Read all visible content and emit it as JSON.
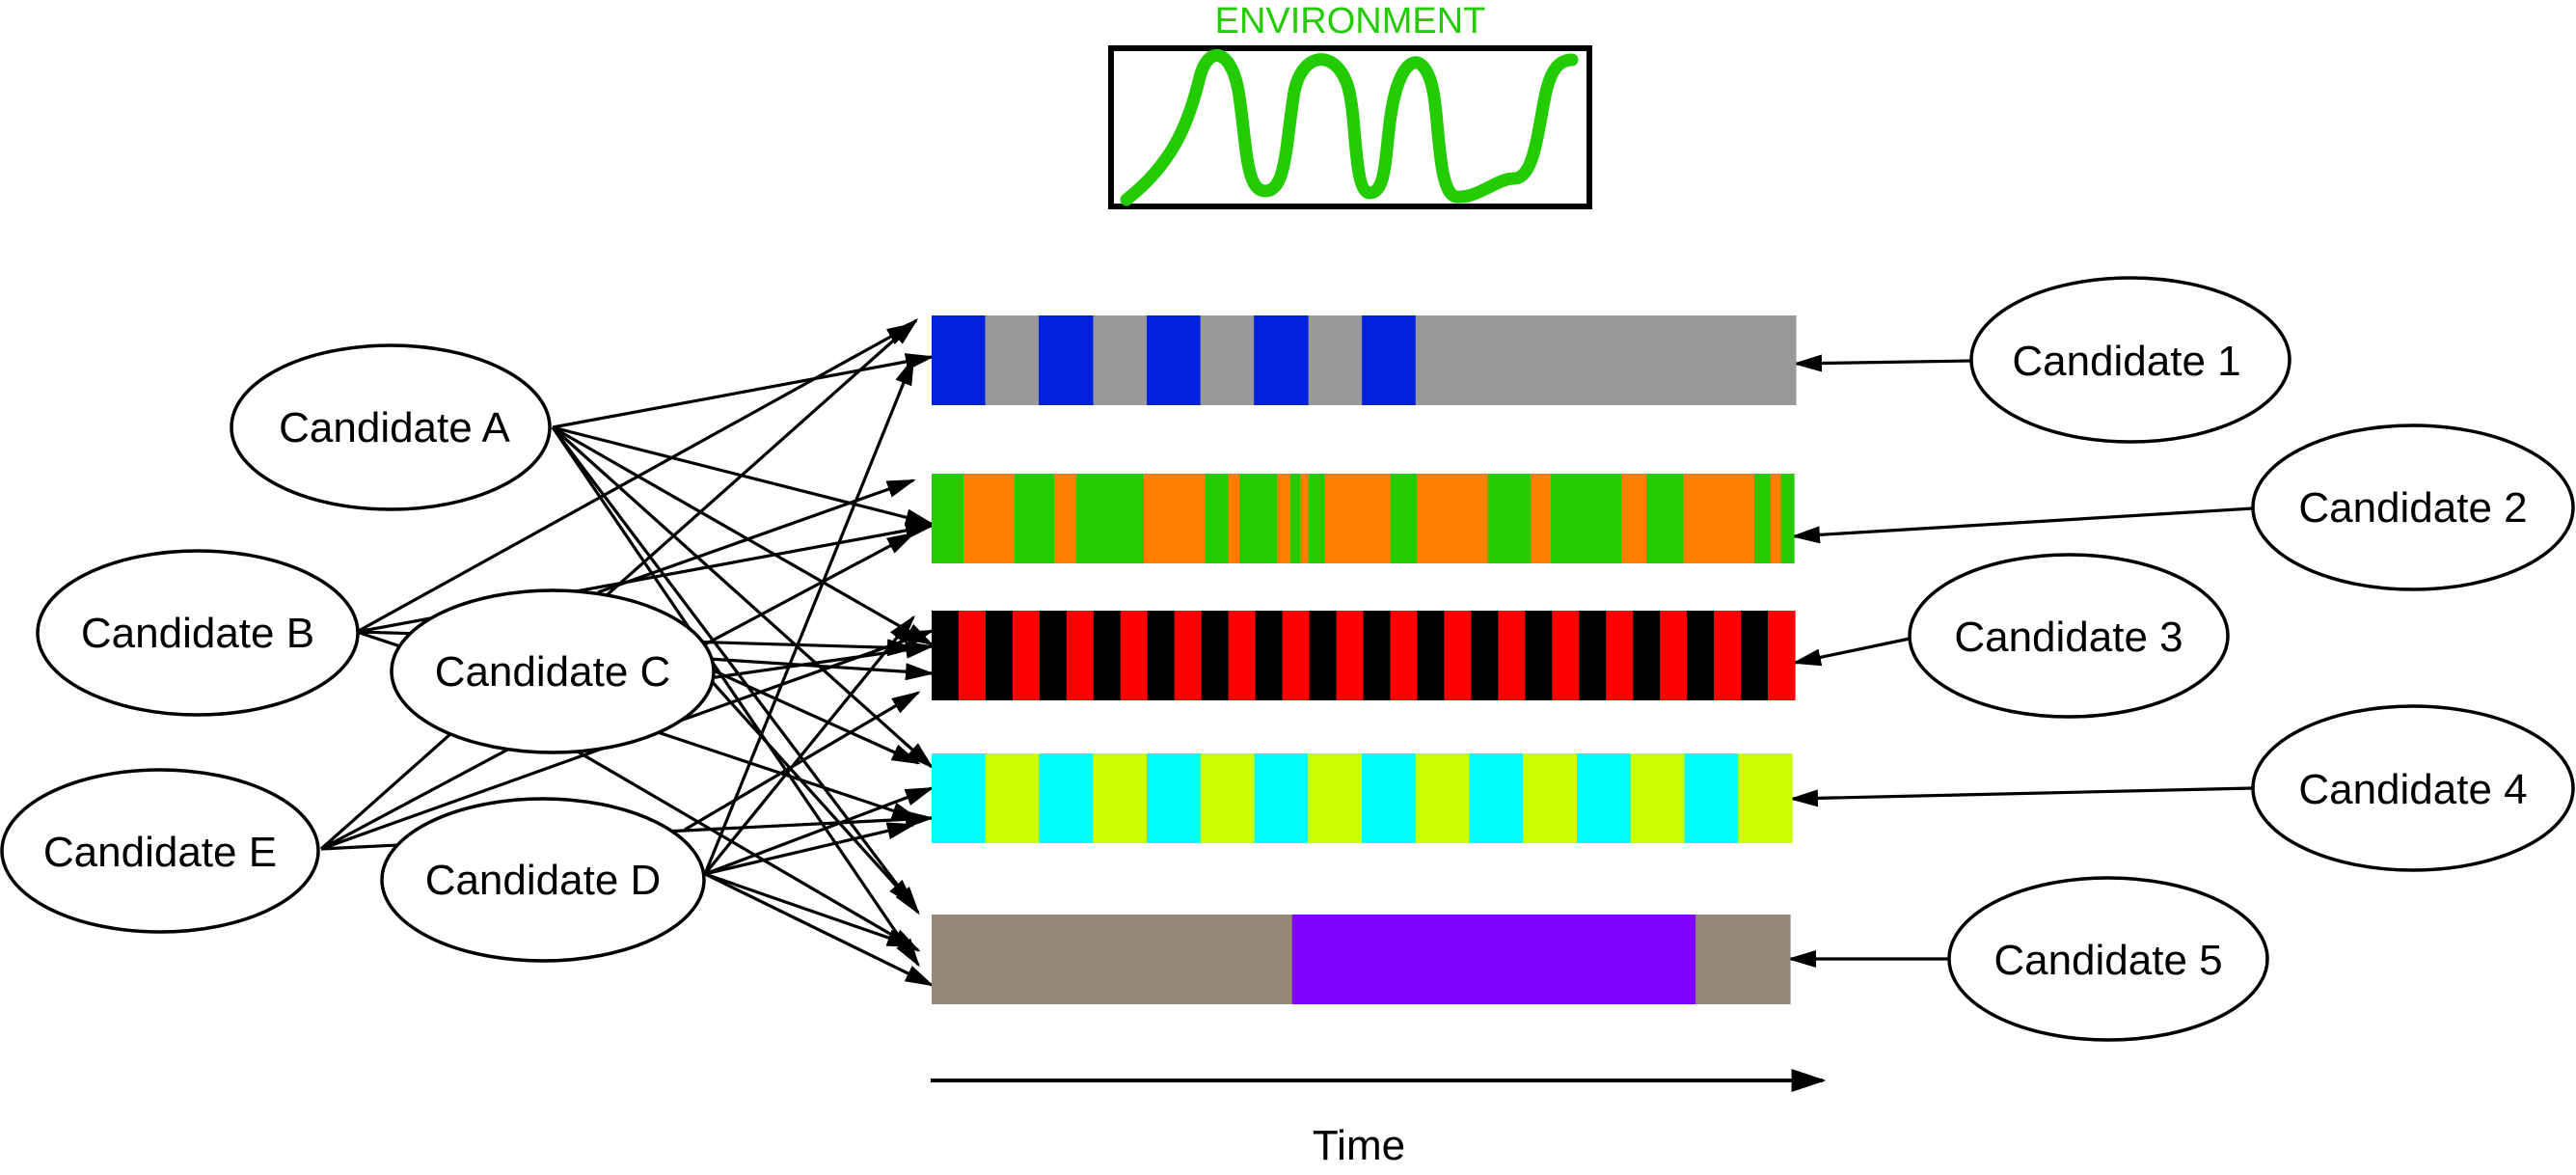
{
  "environment": {
    "title": "ENVIRONMENT",
    "wave_color": "#22cc00"
  },
  "time_label": "Time",
  "sources": [
    {
      "id": "A",
      "label": "Candidate A"
    },
    {
      "id": "B",
      "label": "Candidate B"
    },
    {
      "id": "C",
      "label": "Candidate C"
    },
    {
      "id": "D",
      "label": "Candidate D"
    },
    {
      "id": "E",
      "label": "Candidate E"
    }
  ],
  "candidates": [
    {
      "id": "1",
      "label": "Candidate 1",
      "colors": [
        "#0022dd",
        "#999999"
      ],
      "segments": [
        [
          0,
          0.062,
          0
        ],
        [
          0.062,
          0.124,
          1
        ],
        [
          0.124,
          0.187,
          0
        ],
        [
          0.187,
          0.249,
          1
        ],
        [
          0.249,
          0.311,
          0
        ],
        [
          0.311,
          0.373,
          1
        ],
        [
          0.373,
          0.436,
          0
        ],
        [
          0.436,
          0.498,
          1
        ],
        [
          0.498,
          0.56,
          0
        ],
        [
          0.56,
          1,
          1
        ]
      ]
    },
    {
      "id": "2",
      "label": "Candidate 2",
      "colors": [
        "#22cc00",
        "#ff8000"
      ],
      "segments": [
        [
          0,
          0.037,
          0
        ],
        [
          0.037,
          0.096,
          1
        ],
        [
          0.096,
          0.142,
          0
        ],
        [
          0.142,
          0.168,
          1
        ],
        [
          0.168,
          0.246,
          0
        ],
        [
          0.246,
          0.317,
          1
        ],
        [
          0.317,
          0.344,
          0
        ],
        [
          0.344,
          0.357,
          1
        ],
        [
          0.357,
          0.401,
          0
        ],
        [
          0.401,
          0.416,
          1
        ],
        [
          0.416,
          0.428,
          0
        ],
        [
          0.428,
          0.437,
          1
        ],
        [
          0.437,
          0.456,
          0
        ],
        [
          0.456,
          0.532,
          1
        ],
        [
          0.532,
          0.563,
          0
        ],
        [
          0.563,
          0.645,
          1
        ],
        [
          0.645,
          0.695,
          0
        ],
        [
          0.695,
          0.718,
          1
        ],
        [
          0.718,
          0.8,
          0
        ],
        [
          0.8,
          0.829,
          1
        ],
        [
          0.829,
          0.872,
          0
        ],
        [
          0.872,
          0.954,
          1
        ],
        [
          0.954,
          0.973,
          0
        ],
        [
          0.973,
          0.985,
          1
        ],
        [
          0.985,
          1,
          0
        ]
      ]
    },
    {
      "id": "3",
      "label": "Candidate 3",
      "colors": [
        "#000000",
        "#ff0000"
      ],
      "pattern_stripes": 32
    },
    {
      "id": "4",
      "label": "Candidate 4",
      "colors": [
        "#00ffff",
        "#ccff00"
      ],
      "pattern_stripes": 16
    },
    {
      "id": "5",
      "label": "Candidate 5",
      "colors": [
        "#958878",
        "#8000ff"
      ],
      "segments": [
        [
          0,
          0.42,
          0
        ],
        [
          0.42,
          0.89,
          1
        ],
        [
          0.89,
          1,
          0
        ]
      ]
    }
  ]
}
